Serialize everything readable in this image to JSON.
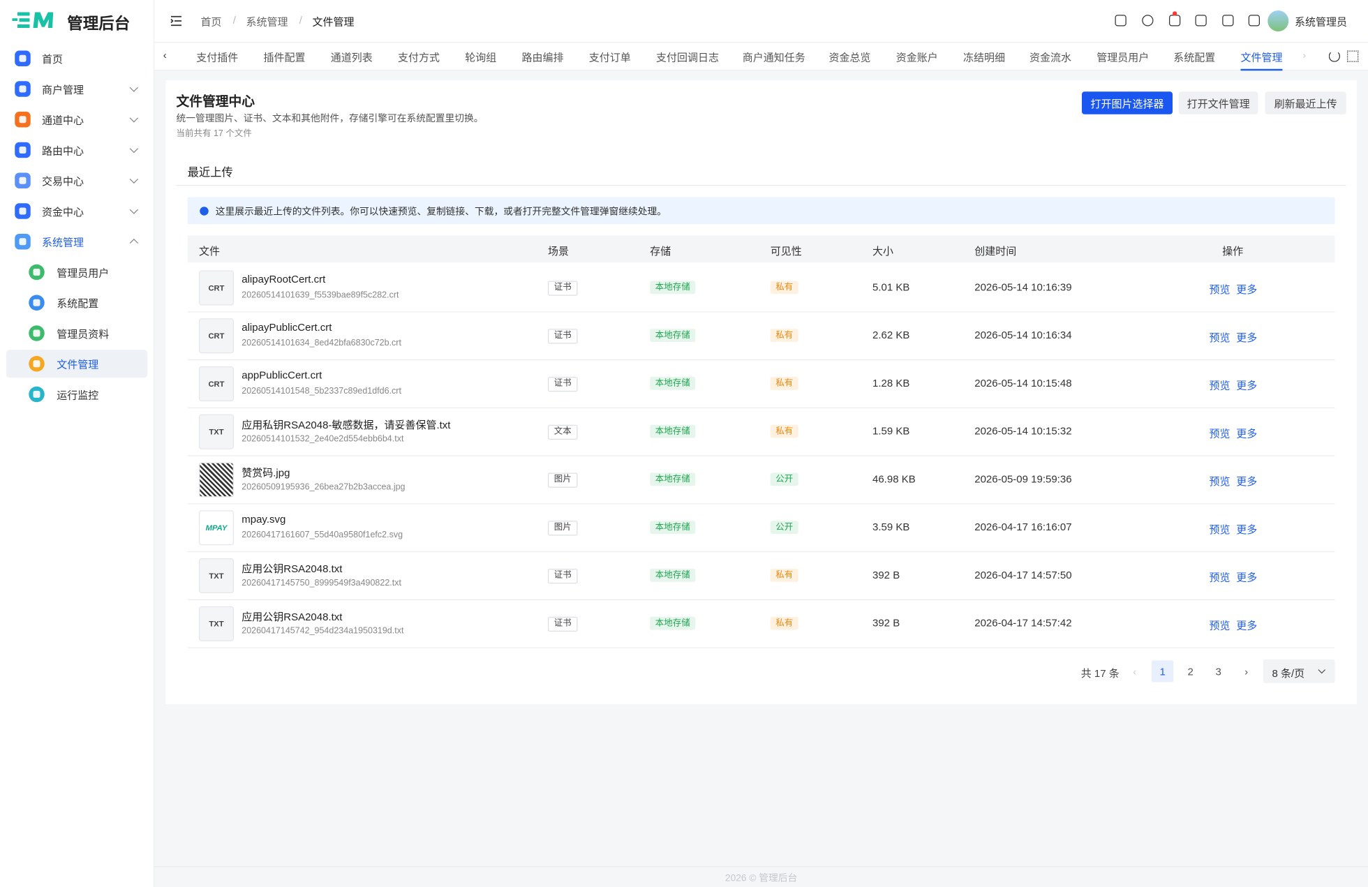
{
  "brand": "管理后台",
  "sidebar": {
    "menu": [
      {
        "label": "首页"
      },
      {
        "label": "商户管理"
      },
      {
        "label": "通道中心"
      },
      {
        "label": "路由中心"
      },
      {
        "label": "交易中心"
      },
      {
        "label": "资金中心"
      },
      {
        "label": "系统管理",
        "children": [
          "管理员用户",
          "系统配置",
          "管理员资料",
          "文件管理",
          "运行监控"
        ]
      }
    ]
  },
  "header": {
    "breadcrumb": [
      "首页",
      "系统管理",
      "文件管理"
    ],
    "user": "系统管理员"
  },
  "tabs": [
    "支付插件",
    "插件配置",
    "通道列表",
    "支付方式",
    "轮询组",
    "路由编排",
    "支付订单",
    "支付回调日志",
    "商户通知任务",
    "资金总览",
    "资金账户",
    "冻结明细",
    "资金流水",
    "管理员用户",
    "系统配置",
    "文件管理"
  ],
  "page": {
    "title": "文件管理中心",
    "description": "统一管理图片、证书、文本和其他附件，存储引擎可在系统配置里切换。",
    "count": "当前共有 17 个文件",
    "buttons": [
      "打开图片选择器",
      "打开文件管理",
      "刷新最近上传"
    ]
  },
  "section": {
    "title": "最近上传",
    "alert": "这里展示最近上传的文件列表。你可以快速预览、复制链接、下载，或者打开完整文件管理弹窗继续处理。"
  },
  "table": {
    "columns": [
      "文件",
      "场景",
      "存储",
      "可见性",
      "大小",
      "创建时间",
      "操作"
    ],
    "actions": [
      "预览",
      "更多"
    ],
    "rows": [
      {
        "thumb": "CRT",
        "name": "alipayRootCert.crt",
        "path": "20260514101639_f5539bae89f5c282.crt",
        "scene": "证书",
        "storage": "本地存储",
        "visibility": "私有",
        "size": "5.01 KB",
        "created": "2026-05-14 10:16:39"
      },
      {
        "thumb": "CRT",
        "name": "alipayPublicCert.crt",
        "path": "20260514101634_8ed42bfa6830c72b.crt",
        "scene": "证书",
        "storage": "本地存储",
        "visibility": "私有",
        "size": "2.62 KB",
        "created": "2026-05-14 10:16:34"
      },
      {
        "thumb": "CRT",
        "name": "appPublicCert.crt",
        "path": "20260514101548_5b2337c89ed1dfd6.crt",
        "scene": "证书",
        "storage": "本地存储",
        "visibility": "私有",
        "size": "1.28 KB",
        "created": "2026-05-14 10:15:48"
      },
      {
        "thumb": "TXT",
        "name": "应用私钥RSA2048-敏感数据，请妥善保管.txt",
        "path": "20260514101532_2e40e2d554ebb6b4.txt",
        "scene": "文本",
        "storage": "本地存储",
        "visibility": "私有",
        "size": "1.59 KB",
        "created": "2026-05-14 10:15:32"
      },
      {
        "name": "赞赏码.jpg",
        "path": "20260509195936_26bea27b2b3accea.jpg",
        "scene": "图片",
        "storage": "本地存储",
        "visibility": "公开",
        "size": "46.98 KB",
        "created": "2026-05-09 19:59:36"
      },
      {
        "thumb": "MPAY",
        "name": "mpay.svg",
        "path": "20260417161607_55d40a9580f1efc2.svg",
        "scene": "图片",
        "storage": "本地存储",
        "visibility": "公开",
        "size": "3.59 KB",
        "created": "2026-04-17 16:16:07"
      },
      {
        "thumb": "TXT",
        "name": "应用公钥RSA2048.txt",
        "path": "20260417145750_8999549f3a490822.txt",
        "scene": "证书",
        "storage": "本地存储",
        "visibility": "私有",
        "size": "392 B",
        "created": "2026-04-17 14:57:50"
      },
      {
        "thumb": "TXT",
        "name": "应用公钥RSA2048.txt",
        "path": "20260417145742_954d234a1950319d.txt",
        "scene": "证书",
        "storage": "本地存储",
        "visibility": "私有",
        "size": "392 B",
        "created": "2026-04-17 14:57:42"
      }
    ]
  },
  "pagination": {
    "total": "共 17 条",
    "pages": [
      "1",
      "2",
      "3"
    ],
    "page_size": "8 条/页"
  },
  "footer": "2026 © 管理后台"
}
